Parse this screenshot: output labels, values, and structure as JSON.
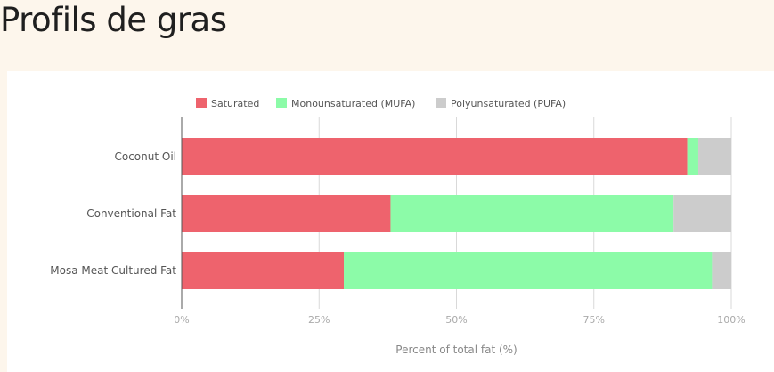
{
  "page": {
    "title": "Profils de gras"
  },
  "chart_data": {
    "type": "bar",
    "orientation": "horizontal",
    "stacked": true,
    "categories": [
      "Coconut Oil",
      "Conventional Fat",
      "Mosa Meat Cultured Fat"
    ],
    "series": [
      {
        "name": "Saturated",
        "color": "#ee636d",
        "values": [
          92,
          38,
          29.5
        ]
      },
      {
        "name": "Monounsaturated (MUFA)",
        "color": "#8cfba8",
        "values": [
          2,
          51.5,
          67
        ]
      },
      {
        "name": "Polyunsaturated (PUFA)",
        "color": "#cccccc",
        "values": [
          6,
          10.5,
          3.5
        ]
      }
    ],
    "xlabel": "Percent of total fat (%)",
    "ylabel": "",
    "xlim": [
      0,
      100
    ],
    "xticks": [
      0,
      25,
      50,
      75,
      100
    ],
    "xtick_labels": [
      "0%",
      "25%",
      "50%",
      "75%",
      "100%"
    ],
    "grid": true,
    "legend_position": "top"
  }
}
